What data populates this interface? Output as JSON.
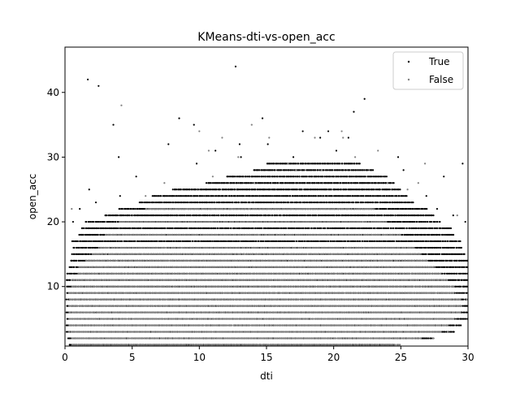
{
  "chart_data": {
    "type": "scatter",
    "title": "KMeans-dti-vs-open_acc",
    "xlabel": "dti",
    "ylabel": "open_acc",
    "xlim": [
      0,
      30
    ],
    "ylim": [
      0.8,
      47
    ],
    "x_ticks": [
      0,
      5,
      10,
      15,
      20,
      25,
      30
    ],
    "y_ticks": [
      10,
      20,
      30,
      40
    ],
    "grid": false,
    "legend_position": "top-right",
    "series": [
      {
        "name": "True",
        "color": "#000000",
        "band_rows": [
          {
            "y": 1,
            "x_range": [
              0.3,
              24.5
            ]
          },
          {
            "y": 2,
            "x_range": [
              0.2,
              27.5
            ]
          },
          {
            "y": 3,
            "x_range": [
              0.1,
              29.0
            ]
          },
          {
            "y": 4,
            "x_range": [
              0.1,
              29.5
            ]
          },
          {
            "y": 5,
            "x_range": [
              0.1,
              30.0
            ]
          },
          {
            "y": 6,
            "x_range": [
              0.1,
              30.0
            ]
          },
          {
            "y": 7,
            "x_range": [
              0.1,
              30.0
            ]
          },
          {
            "y": 8,
            "x_range": [
              0.1,
              30.0
            ]
          },
          {
            "y": 9,
            "x_range": [
              0.1,
              30.0
            ]
          },
          {
            "y": 10,
            "x_range": [
              0.1,
              30.0
            ]
          },
          {
            "y": 11,
            "x_range": [
              0.1,
              30.0
            ]
          },
          {
            "y": 12,
            "x_range": [
              0.1,
              30.0
            ]
          },
          {
            "y": 13,
            "x_range": [
              0.3,
              30.0
            ]
          },
          {
            "y": 14,
            "x_range": [
              0.4,
              30.0
            ]
          },
          {
            "y": 15,
            "x_range": [
              0.5,
              29.8
            ]
          },
          {
            "y": 16,
            "x_range": [
              0.6,
              29.6
            ]
          },
          {
            "y": 17,
            "x_range": [
              0.5,
              29.5
            ]
          },
          {
            "y": 18,
            "x_range": [
              1.0,
              29.0
            ]
          },
          {
            "y": 19,
            "x_range": [
              1.2,
              28.8
            ]
          },
          {
            "y": 20,
            "x_range": [
              1.5,
              28.0
            ]
          },
          {
            "y": 21,
            "x_range": [
              3.0,
              27.5
            ]
          },
          {
            "y": 22,
            "x_range": [
              4.0,
              27.0
            ]
          },
          {
            "y": 23,
            "x_range": [
              5.5,
              26.0
            ]
          },
          {
            "y": 24,
            "x_range": [
              6.5,
              25.5
            ]
          },
          {
            "y": 25,
            "x_range": [
              8.0,
              25.0
            ]
          },
          {
            "y": 26,
            "x_range": [
              10.5,
              24.5
            ]
          },
          {
            "y": 27,
            "x_range": [
              12.0,
              24.0
            ]
          },
          {
            "y": 28,
            "x_range": [
              14.0,
              23.0
            ]
          },
          {
            "y": 29,
            "x_range": [
              15.0,
              22.0
            ]
          }
        ],
        "points": [
          [
            1.7,
            42
          ],
          [
            2.5,
            41
          ],
          [
            12.7,
            44
          ],
          [
            22.3,
            39
          ],
          [
            21.5,
            37
          ],
          [
            3.6,
            35
          ],
          [
            9.6,
            35
          ],
          [
            14.7,
            36
          ],
          [
            17.7,
            34
          ],
          [
            19.6,
            34
          ],
          [
            8.5,
            36
          ],
          [
            7.7,
            32
          ],
          [
            13.0,
            32
          ],
          [
            15.1,
            32
          ],
          [
            19.0,
            33
          ],
          [
            4.0,
            30
          ],
          [
            20.2,
            31
          ],
          [
            24.8,
            30
          ],
          [
            29.6,
            29
          ],
          [
            28.2,
            27
          ],
          [
            4.1,
            24
          ],
          [
            3.0,
            21
          ],
          [
            5.3,
            27
          ],
          [
            1.1,
            22
          ],
          [
            0.6,
            20
          ],
          [
            26.9,
            24
          ],
          [
            27.7,
            22
          ],
          [
            28.9,
            21
          ],
          [
            29.8,
            20
          ],
          [
            25.2,
            28
          ],
          [
            13.1,
            30
          ],
          [
            9.8,
            29
          ],
          [
            11.2,
            31
          ],
          [
            17.0,
            30
          ],
          [
            21.1,
            33
          ],
          [
            16.5,
            27
          ],
          [
            1.8,
            25
          ],
          [
            2.3,
            23
          ],
          [
            29.5,
            5
          ],
          [
            29.7,
            15
          ]
        ]
      },
      {
        "name": "False",
        "color": "#808080",
        "band_rows": [
          {
            "y": 1,
            "x_range": [
              0.5,
              25.0
            ]
          },
          {
            "y": 2,
            "x_range": [
              0.5,
              26.5
            ]
          },
          {
            "y": 3,
            "x_range": [
              0.3,
              28.0
            ]
          },
          {
            "y": 4,
            "x_range": [
              0.3,
              28.5
            ]
          },
          {
            "y": 5,
            "x_range": [
              0.3,
              29.0
            ]
          },
          {
            "y": 6,
            "x_range": [
              0.3,
              29.5
            ]
          },
          {
            "y": 7,
            "x_range": [
              0.3,
              29.5
            ]
          },
          {
            "y": 8,
            "x_range": [
              0.3,
              29.5
            ]
          },
          {
            "y": 9,
            "x_range": [
              0.3,
              29.0
            ]
          },
          {
            "y": 10,
            "x_range": [
              0.5,
              29.0
            ]
          },
          {
            "y": 11,
            "x_range": [
              0.5,
              28.5
            ]
          },
          {
            "y": 12,
            "x_range": [
              1.0,
              28.0
            ]
          },
          {
            "y": 13,
            "x_range": [
              1.0,
              27.5
            ]
          },
          {
            "y": 14,
            "x_range": [
              1.5,
              27.0
            ]
          },
          {
            "y": 15,
            "x_range": [
              2.0,
              26.5
            ]
          },
          {
            "y": 16,
            "x_range": [
              2.5,
              26.0
            ]
          },
          {
            "y": 18,
            "x_range": [
              3.0,
              25.0
            ]
          },
          {
            "y": 20,
            "x_range": [
              4.0,
              24.0
            ]
          },
          {
            "y": 22,
            "x_range": [
              6.0,
              23.0
            ]
          }
        ],
        "points": [
          [
            4.2,
            38
          ],
          [
            10.0,
            34
          ],
          [
            11.7,
            33
          ],
          [
            13.9,
            35
          ],
          [
            15.2,
            33
          ],
          [
            18.6,
            33
          ],
          [
            20.6,
            34
          ],
          [
            20.7,
            33
          ],
          [
            23.3,
            31
          ],
          [
            21.6,
            30
          ],
          [
            12.9,
            30
          ],
          [
            10.7,
            31
          ],
          [
            11.0,
            27
          ],
          [
            19.1,
            28
          ],
          [
            24.0,
            26
          ],
          [
            6.0,
            24
          ],
          [
            7.4,
            26
          ],
          [
            0.5,
            22
          ],
          [
            26.8,
            29
          ],
          [
            29.2,
            21
          ],
          [
            25.5,
            25
          ],
          [
            16.6,
            29
          ],
          [
            17.2,
            28
          ],
          [
            14.1,
            26
          ],
          [
            24.6,
            2
          ],
          [
            25.9,
            3
          ],
          [
            27.4,
            2
          ],
          [
            28.5,
            3
          ],
          [
            29.9,
            8
          ],
          [
            26.3,
            26
          ]
        ]
      }
    ]
  }
}
